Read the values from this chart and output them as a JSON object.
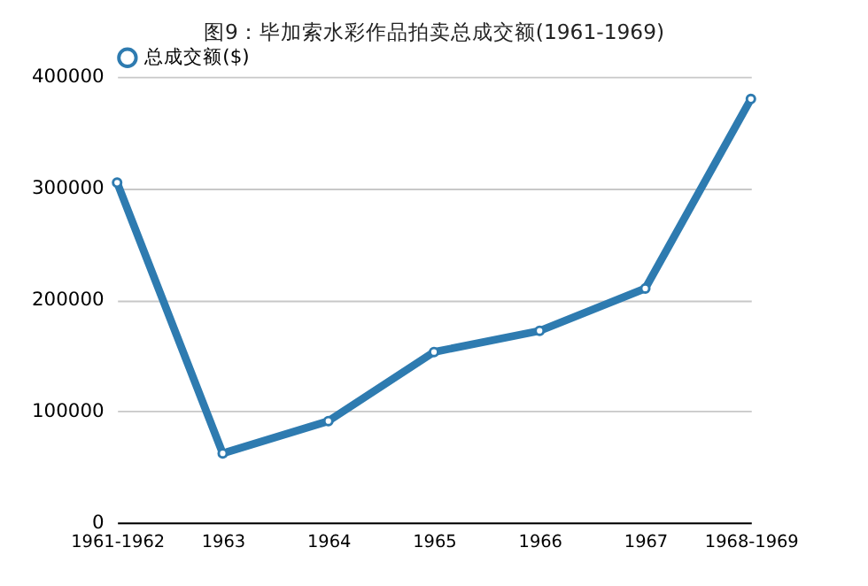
{
  "chart_data": {
    "type": "line",
    "title": "图9：毕加索水彩作品拍卖总成交额(1961-1969)",
    "categories": [
      "1961-1962",
      "1963",
      "1964",
      "1965",
      "1966",
      "1967",
      "1968-1969"
    ],
    "series": [
      {
        "name": "总成交额($)",
        "color": "#2e7bb0",
        "values": [
          305000,
          62000,
          91000,
          153000,
          172000,
          210000,
          380000
        ]
      }
    ],
    "ylim": [
      0,
      400000
    ],
    "yticks": [
      0,
      100000,
      200000,
      300000,
      400000
    ],
    "grid": "y",
    "legend": "top",
    "marker": "circle",
    "line_style": "solid"
  }
}
